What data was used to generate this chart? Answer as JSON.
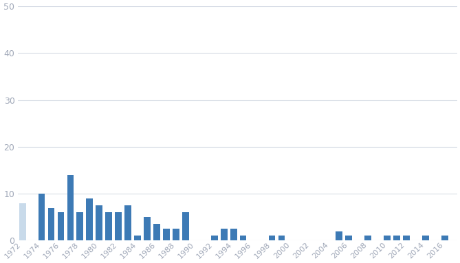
{
  "years": [
    1974,
    1975,
    1976,
    1977,
    1978,
    1979,
    1980,
    1981,
    1982,
    1983,
    1984,
    1985,
    1986,
    1987,
    1988,
    1989,
    1990,
    1991,
    1992,
    1993,
    1994,
    1995,
    1996,
    1997,
    1998,
    1999,
    2000,
    2001,
    2002,
    2003,
    2004,
    2005,
    2006,
    2007,
    2008,
    2009,
    2010,
    2011,
    2012,
    2013,
    2014,
    2015,
    2016
  ],
  "values": [
    10,
    7,
    6,
    14,
    6,
    9,
    7.5,
    6,
    6,
    7.5,
    1,
    5,
    3.5,
    2.5,
    2.5,
    6,
    0,
    0,
    1,
    2.5,
    2.5,
    1,
    0,
    0,
    1,
    1,
    0,
    0,
    0,
    0,
    0,
    2,
    1,
    0,
    1,
    0,
    1,
    1,
    1,
    0,
    1,
    0,
    1
  ],
  "partial_year": 1972,
  "partial_value": 8,
  "bar_color": "#3d7ab5",
  "partial_bar_color": "#c8daea",
  "background_color": "#ffffff",
  "plot_bg_color": "#ffffff",
  "grid_color": "#d8dde6",
  "yticks": [
    0,
    10,
    20,
    30,
    40,
    50
  ],
  "ylim": [
    0,
    50
  ],
  "xlim_left": 1971.5,
  "xlim_right": 2017.3,
  "bar_width": 0.7,
  "tick_label_color": "#a0a8b8",
  "tick_fontsize": 8
}
